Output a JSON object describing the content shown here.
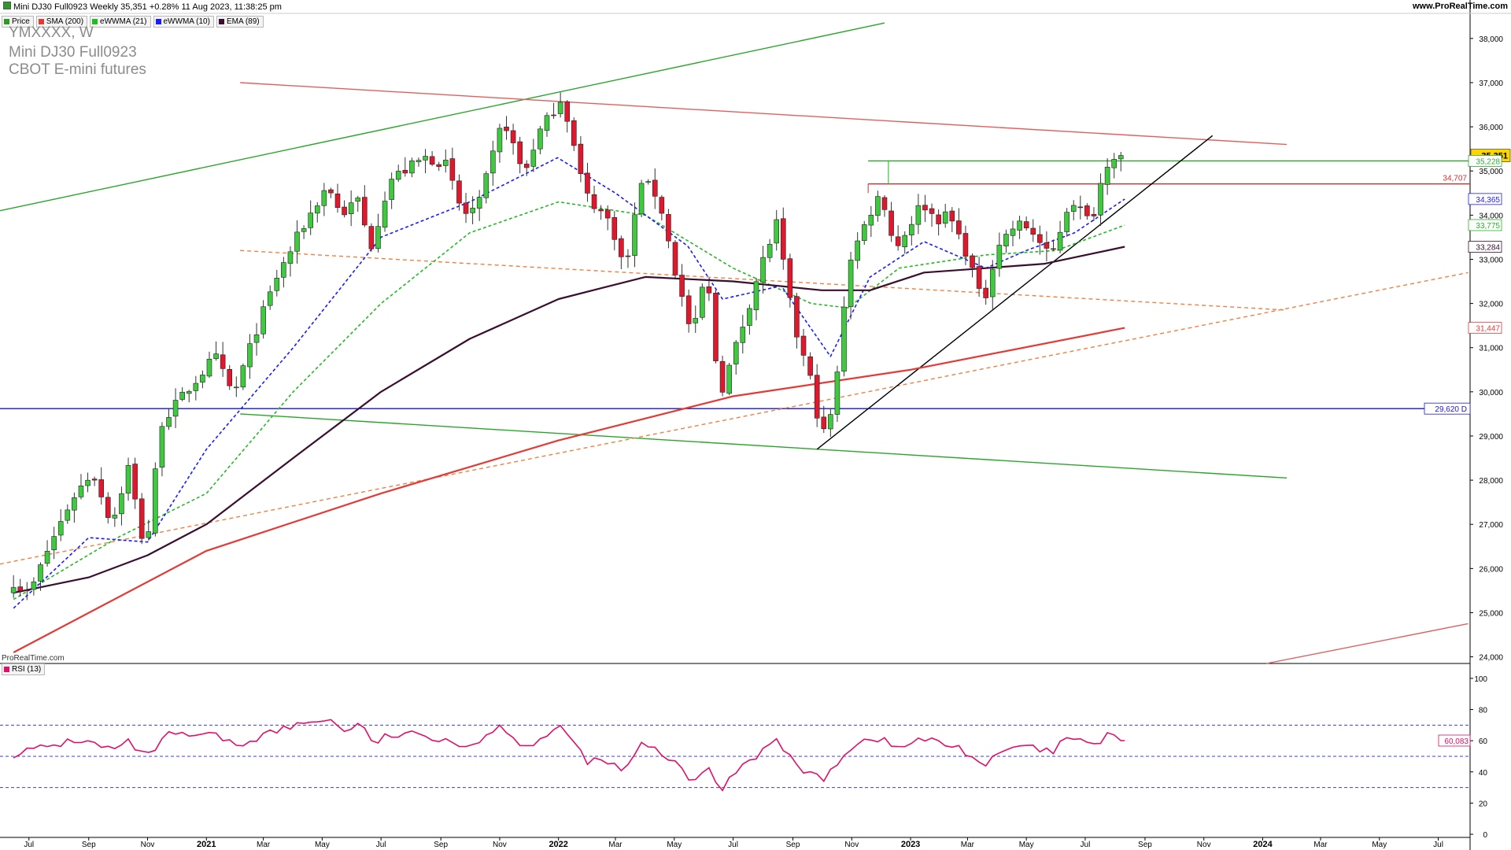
{
  "header": {
    "title": "Mini DJ30 Full0923 Weekly 35,351 +0.28% 11 Aug 2023, 11:38:25 pm",
    "site": "www.ProRealTime.com"
  },
  "legend": [
    {
      "label": "Price",
      "color": "#2a9a2a"
    },
    {
      "label": "SMA (200)",
      "color": "#e53935"
    },
    {
      "label": "eWWMA (21)",
      "color": "#22bb22"
    },
    {
      "label": "eWWMA (10)",
      "color": "#1a1aff"
    },
    {
      "label": "EMA (89)",
      "color": "#3a0e2e"
    }
  ],
  "instrument": {
    "ticker": "YMXXXX, W",
    "name": "Mini DJ30 Full0923",
    "exchange": "CBOT E-mini futures"
  },
  "watermark": "ProRealTime.com",
  "rsi_panel": {
    "label": "RSI (13)",
    "value_tag": "60,083",
    "levels": [
      70,
      50,
      30
    ]
  },
  "price_tags": [
    {
      "text": "35,351",
      "value": 35351,
      "style": "last",
      "color": "#000000",
      "bg": "#ffd400"
    },
    {
      "text": "35,228",
      "value": 35228,
      "style": "box",
      "color": "#33aa33"
    },
    {
      "text": "34,707",
      "value": 34707,
      "style": "plain",
      "color": "#d32f2f"
    },
    {
      "text": "34,365",
      "value": 34365,
      "style": "box",
      "color": "#1a1aff"
    },
    {
      "text": "33,775",
      "value": 33775,
      "style": "box",
      "color": "#22bb22"
    },
    {
      "text": "33,284",
      "value": 33284,
      "style": "box",
      "color": "#3a0e2e"
    },
    {
      "text": "31,447",
      "value": 31447,
      "style": "box",
      "color": "#e53935"
    },
    {
      "text": "29,620 D",
      "value": 29620,
      "style": "box",
      "color": "#1a1acc"
    }
  ],
  "chart_data": {
    "type": "candlestick",
    "title": "Mini DJ30 Full0923 Weekly",
    "timeframe": "Weekly",
    "y_ticks": [
      24000,
      25000,
      26000,
      27000,
      28000,
      29000,
      30000,
      31000,
      32000,
      33000,
      34000,
      35000,
      36000,
      37000,
      38000
    ],
    "y_tick_labels": [
      "24,000",
      "25,000",
      "26,000",
      "27,000",
      "28,000",
      "29,000",
      "30,000",
      "31,000",
      "32,000",
      "33,000",
      "34,000",
      "35,000",
      "36,000",
      "37,000",
      "38,000"
    ],
    "ylim": [
      23850,
      38550
    ],
    "x_labels": [
      {
        "label": "Jul",
        "date": "2020-07-01",
        "bold": false
      },
      {
        "label": "Sep",
        "date": "2020-09-01",
        "bold": false
      },
      {
        "label": "Nov",
        "date": "2020-11-01",
        "bold": false
      },
      {
        "label": "2021",
        "date": "2021-01-01",
        "bold": true
      },
      {
        "label": "Mar",
        "date": "2021-03-01",
        "bold": false
      },
      {
        "label": "May",
        "date": "2021-05-01",
        "bold": false
      },
      {
        "label": "Jul",
        "date": "2021-07-01",
        "bold": false
      },
      {
        "label": "Sep",
        "date": "2021-09-01",
        "bold": false
      },
      {
        "label": "Nov",
        "date": "2021-11-01",
        "bold": false
      },
      {
        "label": "2022",
        "date": "2022-01-01",
        "bold": true
      },
      {
        "label": "Mar",
        "date": "2022-03-01",
        "bold": false
      },
      {
        "label": "May",
        "date": "2022-05-01",
        "bold": false
      },
      {
        "label": "Jul",
        "date": "2022-07-01",
        "bold": false
      },
      {
        "label": "Sep",
        "date": "2022-09-01",
        "bold": false
      },
      {
        "label": "Nov",
        "date": "2022-11-01",
        "bold": false
      },
      {
        "label": "2023",
        "date": "2023-01-01",
        "bold": true
      },
      {
        "label": "Mar",
        "date": "2023-03-01",
        "bold": false
      },
      {
        "label": "May",
        "date": "2023-05-01",
        "bold": false
      },
      {
        "label": "Jul",
        "date": "2023-07-01",
        "bold": false
      },
      {
        "label": "Sep",
        "date": "2023-09-01",
        "bold": false
      },
      {
        "label": "Nov",
        "date": "2023-11-01",
        "bold": false
      },
      {
        "label": "2024",
        "date": "2024-01-01",
        "bold": true
      },
      {
        "label": "Mar",
        "date": "2024-03-01",
        "bold": false
      },
      {
        "label": "May",
        "date": "2024-05-01",
        "bold": false
      },
      {
        "label": "Jul",
        "date": "2024-07-01",
        "bold": false
      }
    ],
    "close_anchors": [
      {
        "date": "2020-06-15",
        "close": 25700
      },
      {
        "date": "2020-07-01",
        "close": 25400
      },
      {
        "date": "2020-07-20",
        "close": 26400
      },
      {
        "date": "2020-08-15",
        "close": 27600
      },
      {
        "date": "2020-09-05",
        "close": 28200
      },
      {
        "date": "2020-09-25",
        "close": 27000
      },
      {
        "date": "2020-10-12",
        "close": 28300
      },
      {
        "date": "2020-10-30",
        "close": 26300
      },
      {
        "date": "2020-11-15",
        "close": 29300
      },
      {
        "date": "2020-12-15",
        "close": 30100
      },
      {
        "date": "2021-01-10",
        "close": 30800
      },
      {
        "date": "2021-01-29",
        "close": 29900
      },
      {
        "date": "2021-02-20",
        "close": 31300
      },
      {
        "date": "2021-03-15",
        "close": 32600
      },
      {
        "date": "2021-04-10",
        "close": 33700
      },
      {
        "date": "2021-05-07",
        "close": 34700
      },
      {
        "date": "2021-05-20",
        "close": 34000
      },
      {
        "date": "2021-06-10",
        "close": 34400
      },
      {
        "date": "2021-06-18",
        "close": 33100
      },
      {
        "date": "2021-07-10",
        "close": 34800
      },
      {
        "date": "2021-08-15",
        "close": 35300
      },
      {
        "date": "2021-09-05",
        "close": 35200
      },
      {
        "date": "2021-09-24",
        "close": 34000
      },
      {
        "date": "2021-10-10",
        "close": 34200
      },
      {
        "date": "2021-11-05",
        "close": 36200
      },
      {
        "date": "2021-11-26",
        "close": 34900
      },
      {
        "date": "2021-12-10",
        "close": 35800
      },
      {
        "date": "2022-01-05",
        "close": 36700
      },
      {
        "date": "2022-01-28",
        "close": 34500
      },
      {
        "date": "2022-02-25",
        "close": 33800
      },
      {
        "date": "2022-03-11",
        "close": 32700
      },
      {
        "date": "2022-03-28",
        "close": 34800
      },
      {
        "date": "2022-04-15",
        "close": 34400
      },
      {
        "date": "2022-05-01",
        "close": 32800
      },
      {
        "date": "2022-05-20",
        "close": 31200
      },
      {
        "date": "2022-06-03",
        "close": 32800
      },
      {
        "date": "2022-06-17",
        "close": 29900
      },
      {
        "date": "2022-07-08",
        "close": 31300
      },
      {
        "date": "2022-07-29",
        "close": 32800
      },
      {
        "date": "2022-08-15",
        "close": 33800
      },
      {
        "date": "2022-09-02",
        "close": 31500
      },
      {
        "date": "2022-09-23",
        "close": 30000
      },
      {
        "date": "2022-09-30",
        "close": 28900
      },
      {
        "date": "2022-10-14",
        "close": 29700
      },
      {
        "date": "2022-10-28",
        "close": 32900
      },
      {
        "date": "2022-11-25",
        "close": 34300
      },
      {
        "date": "2022-12-02",
        "close": 34500
      },
      {
        "date": "2022-12-16",
        "close": 33200
      },
      {
        "date": "2023-01-13",
        "close": 34300
      },
      {
        "date": "2023-01-27",
        "close": 33900
      },
      {
        "date": "2023-02-10",
        "close": 34000
      },
      {
        "date": "2023-03-03",
        "close": 33000
      },
      {
        "date": "2023-03-17",
        "close": 31900
      },
      {
        "date": "2023-03-31",
        "close": 33300
      },
      {
        "date": "2023-04-21",
        "close": 33800
      },
      {
        "date": "2023-05-05",
        "close": 33700
      },
      {
        "date": "2023-05-26",
        "close": 33000
      },
      {
        "date": "2023-06-16",
        "close": 34400
      },
      {
        "date": "2023-07-07",
        "close": 33800
      },
      {
        "date": "2023-07-14",
        "close": 34500
      },
      {
        "date": "2023-07-28",
        "close": 35500
      },
      {
        "date": "2023-08-04",
        "close": 35200
      },
      {
        "date": "2023-08-11",
        "close": 35351
      }
    ],
    "moving_averages": [
      {
        "name": "SMA (200)",
        "color": "#e53935",
        "style": "solid",
        "points": [
          [
            "2020-06-15",
            24100
          ],
          [
            "2021-01-01",
            26400
          ],
          [
            "2021-07-01",
            27700
          ],
          [
            "2022-01-01",
            28900
          ],
          [
            "2022-07-01",
            29900
          ],
          [
            "2023-01-01",
            30500
          ],
          [
            "2023-08-11",
            31447
          ]
        ]
      },
      {
        "name": "eWWMA (21)",
        "color": "#22bb22",
        "style": "dashed",
        "points": [
          [
            "2020-06-15",
            25300
          ],
          [
            "2020-10-01",
            26700
          ],
          [
            "2021-01-01",
            27700
          ],
          [
            "2021-04-01",
            30000
          ],
          [
            "2021-07-01",
            32000
          ],
          [
            "2021-10-01",
            33600
          ],
          [
            "2022-01-01",
            34300
          ],
          [
            "2022-04-01",
            34000
          ],
          [
            "2022-07-01",
            32800
          ],
          [
            "2022-09-20",
            32000
          ],
          [
            "2022-10-28",
            31900
          ],
          [
            "2022-12-20",
            32800
          ],
          [
            "2023-03-20",
            33100
          ],
          [
            "2023-06-01",
            33200
          ],
          [
            "2023-08-11",
            33775
          ]
        ]
      },
      {
        "name": "eWWMA (10)",
        "color": "#1a1aff",
        "style": "dashed",
        "points": [
          [
            "2020-06-15",
            25100
          ],
          [
            "2020-09-01",
            26700
          ],
          [
            "2020-11-01",
            26600
          ],
          [
            "2021-01-01",
            28700
          ],
          [
            "2021-04-01",
            31000
          ],
          [
            "2021-07-01",
            33500
          ],
          [
            "2021-10-01",
            34300
          ],
          [
            "2021-12-31",
            35300
          ],
          [
            "2022-03-01",
            34500
          ],
          [
            "2022-05-15",
            33300
          ],
          [
            "2022-06-20",
            32100
          ],
          [
            "2022-08-20",
            32400
          ],
          [
            "2022-10-10",
            30800
          ],
          [
            "2022-11-20",
            32600
          ],
          [
            "2023-01-15",
            33400
          ],
          [
            "2023-03-20",
            32800
          ],
          [
            "2023-05-01",
            33200
          ],
          [
            "2023-06-20",
            33600
          ],
          [
            "2023-08-11",
            34365
          ]
        ]
      },
      {
        "name": "EMA (89)",
        "color": "#3a0e2e",
        "style": "solid",
        "points": [
          [
            "2020-06-15",
            25450
          ],
          [
            "2020-09-01",
            25800
          ],
          [
            "2020-11-01",
            26300
          ],
          [
            "2021-01-01",
            27000
          ],
          [
            "2021-04-01",
            28500
          ],
          [
            "2021-07-01",
            30000
          ],
          [
            "2021-10-01",
            31200
          ],
          [
            "2022-01-01",
            32100
          ],
          [
            "2022-04-01",
            32600
          ],
          [
            "2022-07-01",
            32500
          ],
          [
            "2022-10-01",
            32300
          ],
          [
            "2022-11-20",
            32300
          ],
          [
            "2023-01-15",
            32700
          ],
          [
            "2023-03-20",
            32800
          ],
          [
            "2023-05-20",
            32900
          ],
          [
            "2023-08-11",
            33284
          ]
        ]
      }
    ],
    "trendlines": [
      {
        "name": "upper-green-channel",
        "color": "#2aa52a",
        "style": "solid",
        "from": [
          "2020-06-01",
          34100
        ],
        "to": [
          "2022-12-05",
          38350
        ]
      },
      {
        "name": "red-resistance",
        "color": "#e06060",
        "style": "solid",
        "from": [
          "2021-02-05",
          37000
        ],
        "to": [
          "2024-01-26",
          35600
        ]
      },
      {
        "name": "lower-green-channel",
        "color": "#2aa52a",
        "style": "solid",
        "from": [
          "2021-02-05",
          29500
        ],
        "to": [
          "2024-01-26",
          28050
        ]
      },
      {
        "name": "orange-dashed-upper",
        "color": "#f08040",
        "style": "dashed",
        "from": [
          "2021-02-05",
          33200
        ],
        "to": [
          "2024-01-26",
          31850
        ]
      },
      {
        "name": "orange-dashed-rising",
        "color": "#f08040",
        "style": "dashed",
        "from": [
          "2020-06-01",
          26100
        ],
        "to": [
          "2024-08-01",
          32700
        ]
      },
      {
        "name": "black-uptrend",
        "color": "#000000",
        "style": "solid",
        "from": [
          "2022-09-26",
          28700
        ],
        "to": [
          "2023-11-10",
          35800
        ]
      },
      {
        "name": "red-lower-rising",
        "color": "#e06060",
        "style": "solid",
        "from": [
          "2024-01-05",
          23850
        ],
        "to": [
          "2024-08-01",
          24750
        ]
      }
    ],
    "levels": [
      {
        "name": "level-35228",
        "value": 35228,
        "color": "#22aa22",
        "from": "2022-11-18"
      },
      {
        "name": "level-34707",
        "value": 34707,
        "color": "#d32f2f",
        "from": "2022-11-18"
      },
      {
        "name": "level-29620",
        "value": 29620,
        "color": "#1a1a99",
        "from": "2020-06-01"
      }
    ],
    "rsi": {
      "name": "RSI (13)",
      "ylim": [
        0,
        105
      ],
      "y_ticks": [
        0,
        20,
        40,
        60,
        80,
        100
      ],
      "points": [
        [
          "2020-06-15",
          52
        ],
        [
          "2020-07-15",
          55
        ],
        [
          "2020-08-20",
          61
        ],
        [
          "2020-09-25",
          54
        ],
        [
          "2020-10-15",
          59
        ],
        [
          "2020-10-30",
          48
        ],
        [
          "2020-11-20",
          63
        ],
        [
          "2021-01-15",
          63
        ],
        [
          "2021-01-29",
          56
        ],
        [
          "2021-03-01",
          64
        ],
        [
          "2021-05-07",
          75
        ],
        [
          "2021-05-21",
          66
        ],
        [
          "2021-06-11",
          72
        ],
        [
          "2021-06-18",
          58
        ],
        [
          "2021-07-15",
          64
        ],
        [
          "2021-09-10",
          62
        ],
        [
          "2021-09-24",
          55
        ],
        [
          "2021-11-05",
          70
        ],
        [
          "2021-11-26",
          56
        ],
        [
          "2022-01-07",
          68
        ],
        [
          "2022-01-28",
          48
        ],
        [
          "2022-02-25",
          45
        ],
        [
          "2022-03-11",
          40
        ],
        [
          "2022-03-28",
          57
        ],
        [
          "2022-04-20",
          52
        ],
        [
          "2022-05-20",
          33
        ],
        [
          "2022-06-03",
          44
        ],
        [
          "2022-06-17",
          28
        ],
        [
          "2022-07-08",
          44
        ],
        [
          "2022-08-15",
          60
        ],
        [
          "2022-09-02",
          46
        ],
        [
          "2022-09-30",
          34
        ],
        [
          "2022-10-28",
          55
        ],
        [
          "2022-11-25",
          63
        ],
        [
          "2022-12-16",
          55
        ],
        [
          "2023-01-13",
          61
        ],
        [
          "2023-02-24",
          55
        ],
        [
          "2023-03-17",
          44
        ],
        [
          "2023-04-21",
          57
        ],
        [
          "2023-05-26",
          52
        ],
        [
          "2023-06-16",
          63
        ],
        [
          "2023-07-07",
          55
        ],
        [
          "2023-07-28",
          66
        ],
        [
          "2023-08-04",
          62
        ],
        [
          "2023-08-11",
          60.083
        ]
      ]
    }
  }
}
